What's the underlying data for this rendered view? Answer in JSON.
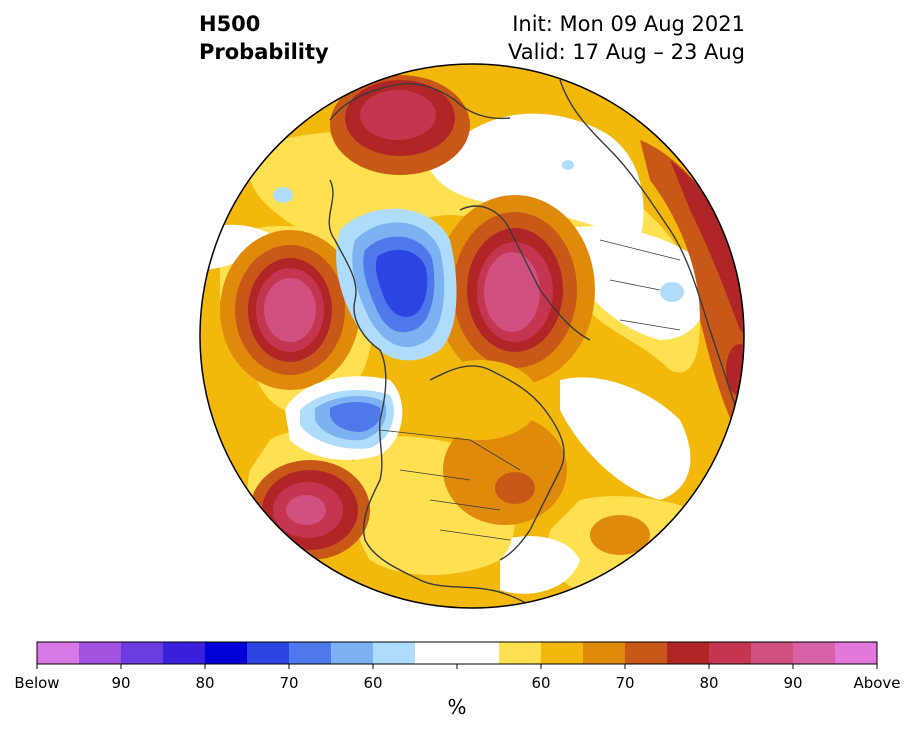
{
  "title": {
    "variable": "H500",
    "product": "Probability",
    "init": "Init: Mon 09 Aug 2021",
    "valid": "Valid: 17 Aug – 23 Aug"
  },
  "colorbar": {
    "unit": "%",
    "colors": [
      "#d878e6",
      "#a352e0",
      "#6b3de0",
      "#3a1fdc",
      "#0000d6",
      "#2b44e2",
      "#4f78ea",
      "#7cb2f2",
      "#b0dcfc",
      "#ffffff",
      "#ffffff",
      "#ffe050",
      "#f2b90c",
      "#e08a0c",
      "#c85818",
      "#b02626",
      "#c43550",
      "#d05080",
      "#d862a8",
      "#e278dc"
    ],
    "tick_labels": [
      {
        "text": "Below",
        "bin": 0
      },
      {
        "text": "90",
        "bin": 2
      },
      {
        "text": "80",
        "bin": 4
      },
      {
        "text": "70",
        "bin": 6
      },
      {
        "text": "60",
        "bin": 8
      },
      {
        "text": "60",
        "bin": 12
      },
      {
        "text": "70",
        "bin": 14
      },
      {
        "text": "80",
        "bin": 16
      },
      {
        "text": "90",
        "bin": 18
      },
      {
        "text": "Above",
        "bin": 20
      }
    ]
  },
  "map": {
    "projection": "north polar stereographic",
    "fill_colors": {
      "above_low": "#ffe050",
      "above_mid": "#f2b90c",
      "above_high": "#e08a0c",
      "above_vhigh": "#c85818",
      "above_peak": "#b02626",
      "above_core": "#c43550",
      "above_max": "#d05080",
      "below_low": "#b0dcfc",
      "below_mid": "#7cb2f2",
      "below_high": "#4f78ea",
      "below_peak": "#2b44e2",
      "neutral": "#ffffff"
    }
  }
}
